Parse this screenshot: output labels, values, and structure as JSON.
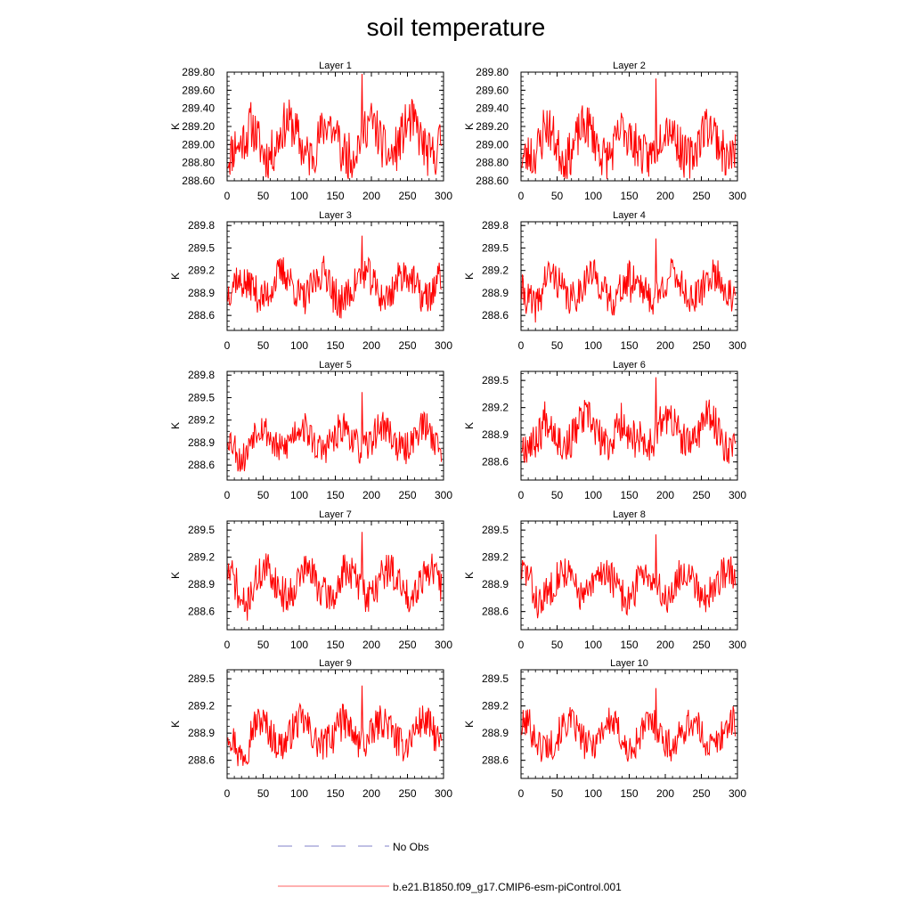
{
  "figure": {
    "title": "soil temperature"
  },
  "colors": {
    "model_line": "#ff0000",
    "obs_line": "#8080c8",
    "axis": "#000000"
  },
  "legend": {
    "entries": [
      {
        "label": "No Obs",
        "style": "dashed"
      },
      {
        "label": "b.e21.B1850.f09_g17.CMIP6-esm-piControl.001",
        "style": "solid"
      }
    ]
  },
  "chart_data": {
    "type": "line",
    "title": "soil temperature",
    "series_name": "b.e21.B1850.f09_g17.CMIP6-esm-piControl.001",
    "xlim": [
      0,
      300
    ],
    "x_ticks": [
      "0",
      "50",
      "100",
      "150",
      "200",
      "250",
      "300"
    ],
    "ylabel": "K",
    "panels": [
      {
        "title": "Layer 1",
        "ylim": [
          288.6,
          289.8
        ],
        "y_ticks": [
          "288.60",
          "288.80",
          "289.00",
          "289.20",
          "289.40",
          "289.60",
          "289.80"
        ],
        "y_tick_values": [
          288.6,
          288.8,
          289.0,
          289.2,
          289.4,
          289.6,
          289.8
        ],
        "mean": 289.06,
        "amp": 0.42,
        "seed": 11
      },
      {
        "title": "Layer 2",
        "ylim": [
          288.6,
          289.8
        ],
        "y_ticks": [
          "288.60",
          "288.80",
          "289.00",
          "289.20",
          "289.40",
          "289.60",
          "289.80"
        ],
        "y_tick_values": [
          288.6,
          288.8,
          289.0,
          289.2,
          289.4,
          289.6,
          289.8
        ],
        "mean": 289.03,
        "amp": 0.4,
        "seed": 23
      },
      {
        "title": "Layer 3",
        "ylim": [
          288.4,
          289.85
        ],
        "y_ticks": [
          "288.6",
          "288.9",
          "289.2",
          "289.5",
          "289.8"
        ],
        "y_tick_values": [
          288.6,
          288.9,
          289.2,
          289.5,
          289.8
        ],
        "mean": 289.0,
        "amp": 0.38,
        "seed": 37
      },
      {
        "title": "Layer 4",
        "ylim": [
          288.4,
          289.85
        ],
        "y_ticks": [
          "288.6",
          "288.9",
          "289.2",
          "289.5",
          "289.8"
        ],
        "y_tick_values": [
          288.6,
          288.9,
          289.2,
          289.5,
          289.8
        ],
        "mean": 288.98,
        "amp": 0.37,
        "seed": 41
      },
      {
        "title": "Layer 5",
        "ylim": [
          288.4,
          289.85
        ],
        "y_ticks": [
          "288.6",
          "288.9",
          "289.2",
          "289.5",
          "289.8"
        ],
        "y_tick_values": [
          288.6,
          288.9,
          289.2,
          289.5,
          289.8
        ],
        "mean": 288.96,
        "amp": 0.35,
        "seed": 53
      },
      {
        "title": "Layer 6",
        "ylim": [
          288.4,
          289.6
        ],
        "y_ticks": [
          "288.6",
          "288.9",
          "289.2",
          "289.5"
        ],
        "y_tick_values": [
          288.6,
          288.9,
          289.2,
          289.5
        ],
        "mean": 288.94,
        "amp": 0.34,
        "seed": 67
      },
      {
        "title": "Layer 7",
        "ylim": [
          288.4,
          289.6
        ],
        "y_ticks": [
          "288.6",
          "288.9",
          "289.2",
          "289.5"
        ],
        "y_tick_values": [
          288.6,
          288.9,
          289.2,
          289.5
        ],
        "mean": 288.92,
        "amp": 0.32,
        "seed": 71
      },
      {
        "title": "Layer 8",
        "ylim": [
          288.4,
          289.6
        ],
        "y_ticks": [
          "288.6",
          "288.9",
          "289.2",
          "289.5"
        ],
        "y_tick_values": [
          288.6,
          288.9,
          289.2,
          289.5
        ],
        "mean": 288.91,
        "amp": 0.31,
        "seed": 83
      },
      {
        "title": "Layer 9",
        "ylim": [
          288.4,
          289.6
        ],
        "y_ticks": [
          "288.6",
          "288.9",
          "289.2",
          "289.5"
        ],
        "y_tick_values": [
          288.6,
          288.9,
          289.2,
          289.5
        ],
        "mean": 288.9,
        "amp": 0.3,
        "seed": 97
      },
      {
        "title": "Layer 10",
        "ylim": [
          288.4,
          289.6
        ],
        "y_ticks": [
          "288.6",
          "288.9",
          "289.2",
          "289.5"
        ],
        "y_tick_values": [
          288.6,
          288.9,
          289.2,
          289.5
        ],
        "mean": 288.89,
        "amp": 0.29,
        "seed": 101
      }
    ]
  }
}
